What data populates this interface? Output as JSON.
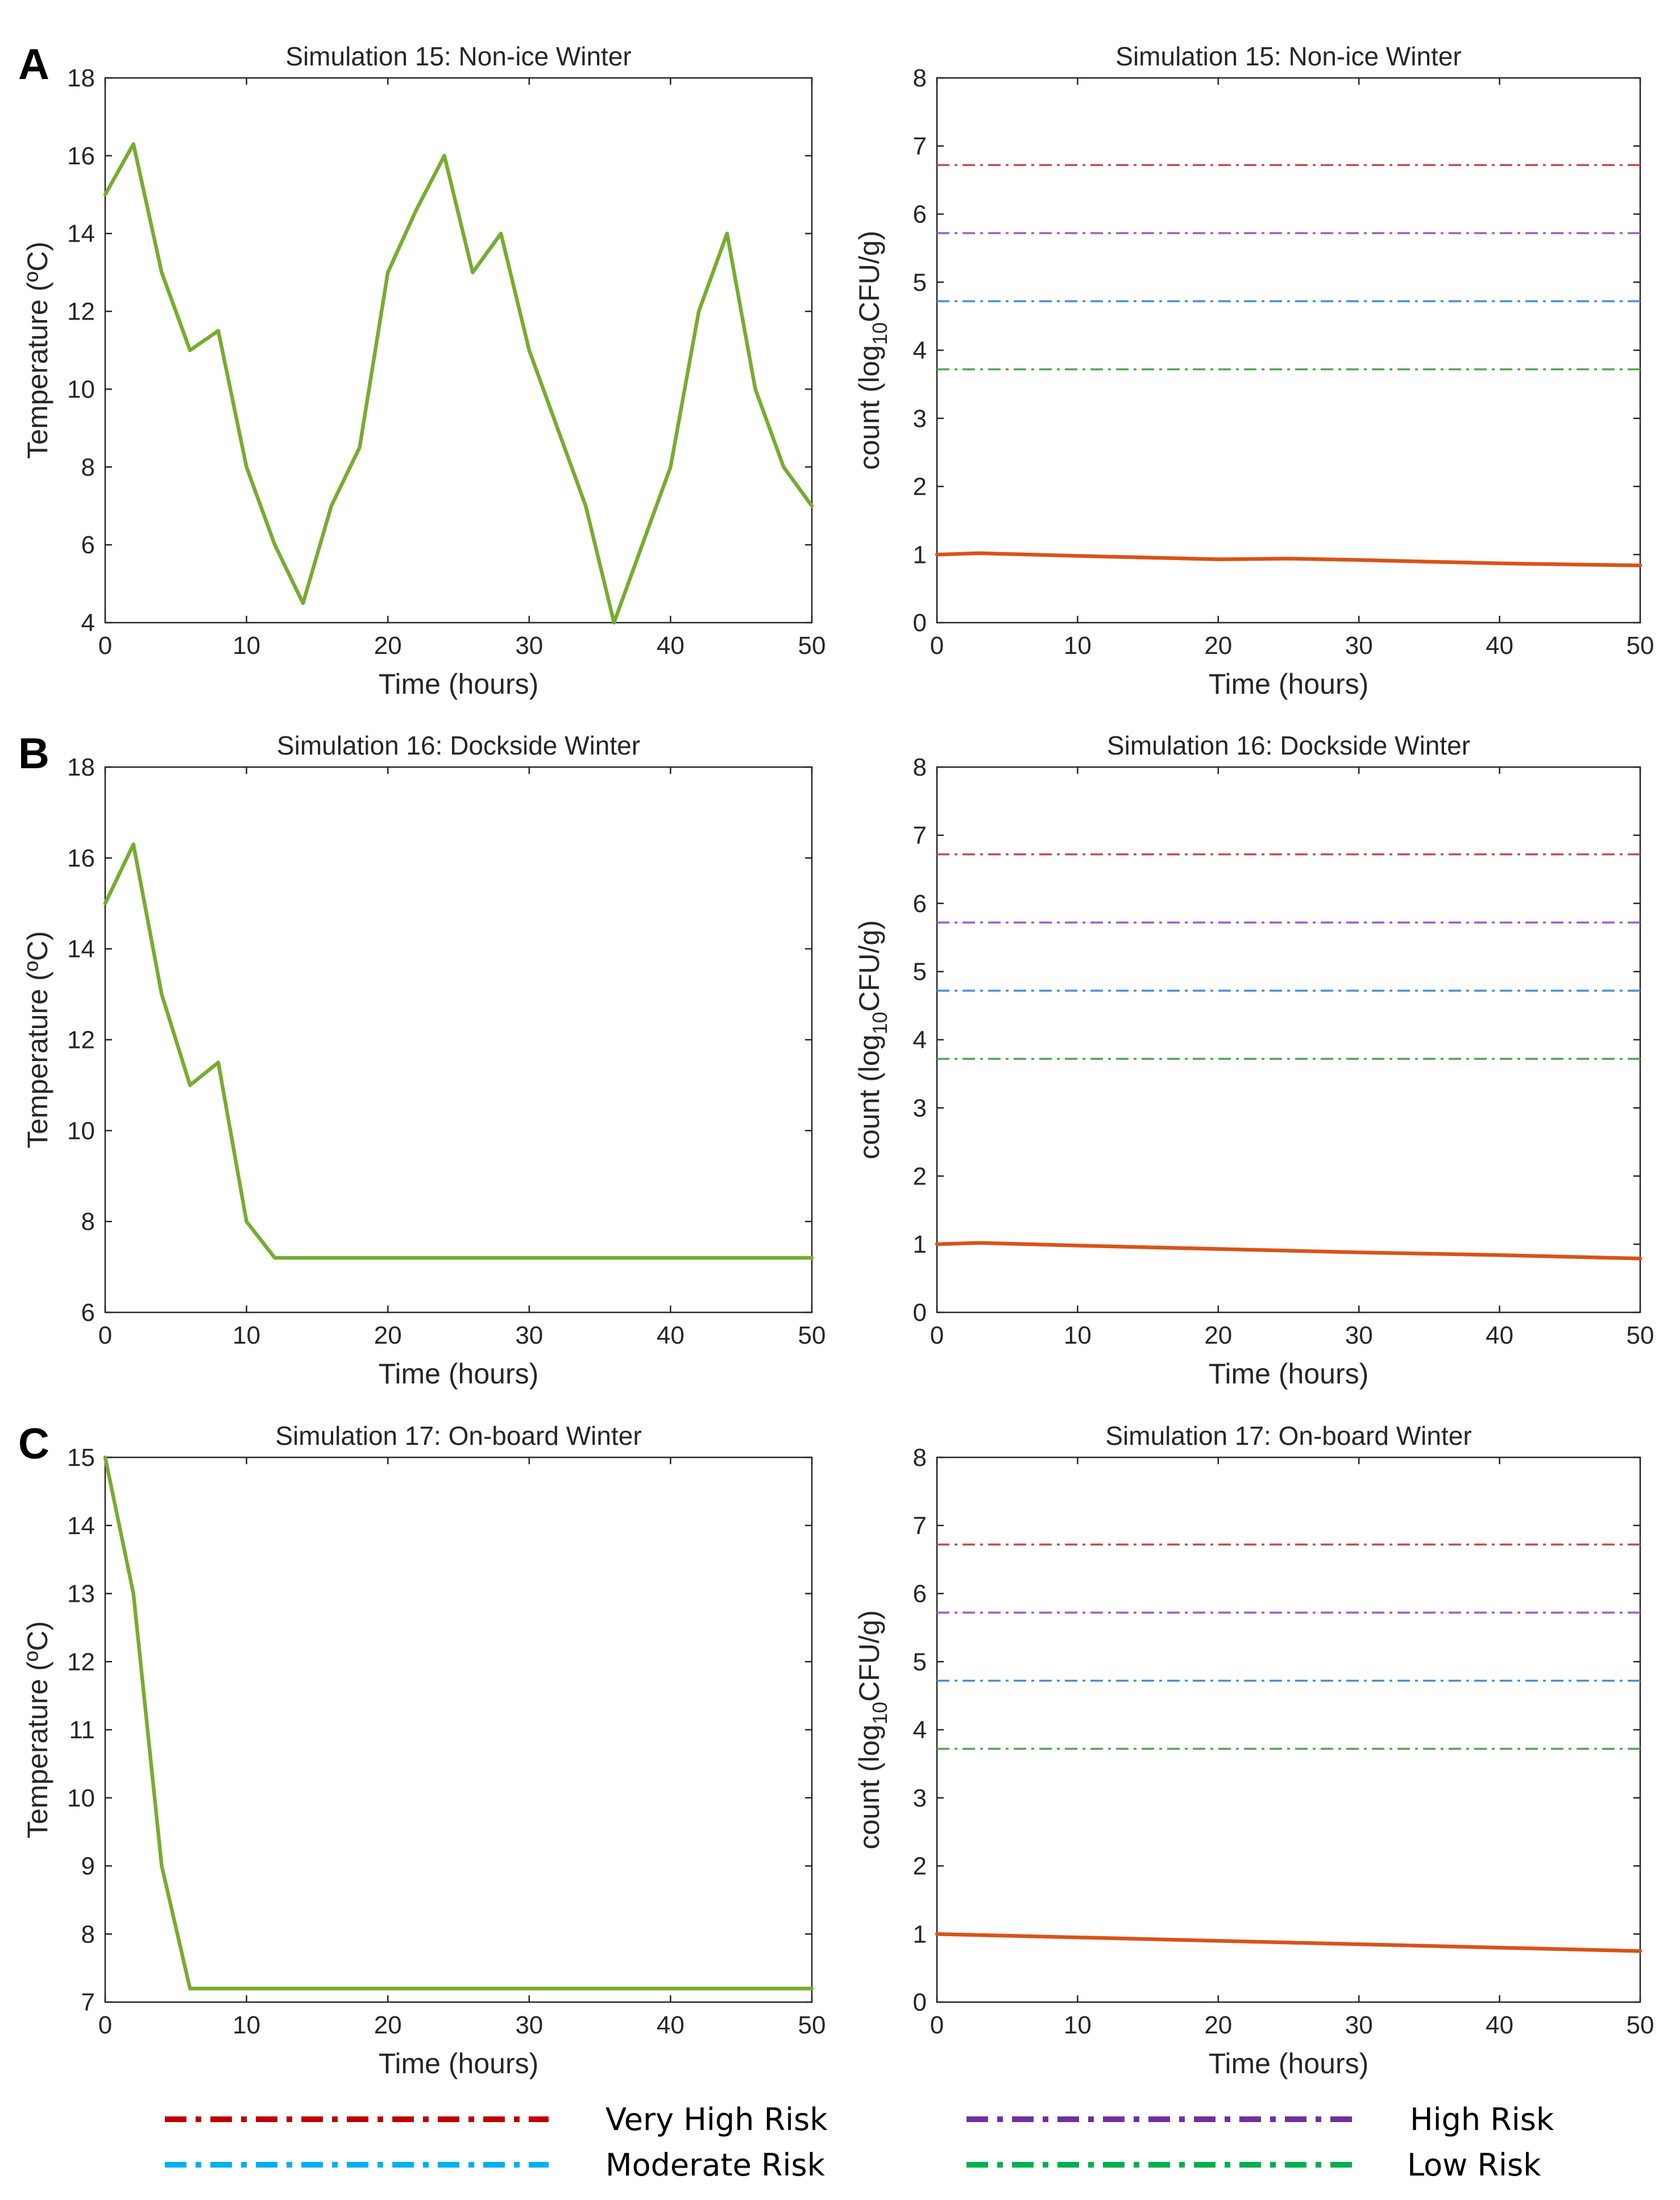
{
  "legend": [
    {
      "label": "Very High Risk",
      "color": "#c00000"
    },
    {
      "label": "High Risk",
      "color": "#7030a0"
    },
    {
      "label": "Moderate Risk",
      "color": "#00b0f0"
    },
    {
      "label": "Low Risk",
      "color": "#00b050"
    }
  ],
  "chart_data": [
    {
      "id": "A-temp",
      "panel_letter": "A",
      "type": "line",
      "title": "Simulation 15: Non-ice Winter",
      "xlabel": "Time (hours)",
      "ylabel": "Temperature (ºC)",
      "xlim": [
        0,
        50
      ],
      "ylim": [
        4,
        18
      ],
      "xticks": [
        0,
        10,
        20,
        30,
        40,
        50
      ],
      "yticks": [
        4,
        6,
        8,
        10,
        12,
        14,
        16,
        18
      ],
      "series": [
        {
          "name": "Temperature",
          "color": "#77ac30",
          "x": [
            0,
            2,
            4,
            6,
            8,
            10,
            12,
            14,
            16,
            18,
            20,
            22,
            24,
            26,
            28,
            30,
            32,
            34,
            36,
            38,
            40,
            42,
            44,
            46,
            48,
            50
          ],
          "y": [
            15,
            16.3,
            13,
            11,
            11.5,
            8,
            6,
            4.5,
            7,
            8.5,
            13,
            14.6,
            16,
            13,
            14,
            11,
            9,
            7,
            4,
            6,
            8,
            12,
            14,
            10,
            8,
            7
          ]
        }
      ]
    },
    {
      "id": "A-count",
      "type": "line",
      "title": "Simulation 15: Non-ice Winter",
      "xlabel": "Time (hours)",
      "ylabel_main": "count (log",
      "ylabel_sub": "10",
      "ylabel_tail": "CFU/g)",
      "xlim": [
        0,
        50
      ],
      "ylim": [
        0,
        8
      ],
      "xticks": [
        0,
        10,
        20,
        30,
        40,
        50
      ],
      "yticks": [
        0,
        1,
        2,
        3,
        4,
        5,
        6,
        7,
        8
      ],
      "thresholds": [
        {
          "name": "Very High Risk",
          "value": 6.72,
          "color": "#c0504d"
        },
        {
          "name": "High Risk",
          "value": 5.72,
          "color": "#a05cc8"
        },
        {
          "name": "Moderate Risk",
          "value": 4.72,
          "color": "#4a90d9"
        },
        {
          "name": "Low Risk",
          "value": 3.72,
          "color": "#4ea84e"
        }
      ],
      "series": [
        {
          "name": "Count",
          "color": "#d95319",
          "x": [
            0,
            3,
            10,
            20,
            25,
            30,
            40,
            50
          ],
          "y": [
            1.0,
            1.02,
            0.98,
            0.93,
            0.94,
            0.92,
            0.87,
            0.84
          ]
        }
      ]
    },
    {
      "id": "B-temp",
      "panel_letter": "B",
      "type": "line",
      "title": "Simulation 16: Dockside Winter",
      "xlabel": "Time (hours)",
      "ylabel": "Temperature (ºC)",
      "xlim": [
        0,
        50
      ],
      "ylim": [
        6,
        18
      ],
      "xticks": [
        0,
        10,
        20,
        30,
        40,
        50
      ],
      "yticks": [
        6,
        8,
        10,
        12,
        14,
        16,
        18
      ],
      "series": [
        {
          "name": "Temperature",
          "color": "#77ac30",
          "x": [
            0,
            2,
            4,
            6,
            8,
            10,
            12,
            50
          ],
          "y": [
            15,
            16.3,
            13,
            11,
            11.5,
            8,
            7.2,
            7.2
          ]
        }
      ]
    },
    {
      "id": "B-count",
      "type": "line",
      "title": "Simulation 16: Dockside Winter",
      "xlabel": "Time (hours)",
      "ylabel_main": "count (log",
      "ylabel_sub": "10",
      "ylabel_tail": "CFU/g)",
      "xlim": [
        0,
        50
      ],
      "ylim": [
        0,
        8
      ],
      "xticks": [
        0,
        10,
        20,
        30,
        40,
        50
      ],
      "yticks": [
        0,
        1,
        2,
        3,
        4,
        5,
        6,
        7,
        8
      ],
      "thresholds": [
        {
          "name": "Very High Risk",
          "value": 6.72,
          "color": "#c0504d"
        },
        {
          "name": "High Risk",
          "value": 5.72,
          "color": "#a05cc8"
        },
        {
          "name": "Moderate Risk",
          "value": 4.72,
          "color": "#4a90d9"
        },
        {
          "name": "Low Risk",
          "value": 3.72,
          "color": "#4ea84e"
        }
      ],
      "series": [
        {
          "name": "Count",
          "color": "#d95319",
          "x": [
            0,
            3,
            10,
            20,
            30,
            40,
            50
          ],
          "y": [
            1.0,
            1.02,
            0.98,
            0.93,
            0.88,
            0.84,
            0.79
          ]
        }
      ]
    },
    {
      "id": "C-temp",
      "panel_letter": "C",
      "type": "line",
      "title": "Simulation 17: On-board Winter",
      "xlabel": "Time (hours)",
      "ylabel": "Temperature (ºC)",
      "xlim": [
        0,
        50
      ],
      "ylim": [
        7,
        15
      ],
      "xticks": [
        0,
        10,
        20,
        30,
        40,
        50
      ],
      "yticks": [
        7,
        8,
        9,
        10,
        11,
        12,
        13,
        14,
        15
      ],
      "series": [
        {
          "name": "Temperature",
          "color": "#77ac30",
          "x": [
            0,
            2,
            4,
            6,
            50
          ],
          "y": [
            15,
            13,
            9,
            7.2,
            7.2
          ]
        }
      ]
    },
    {
      "id": "C-count",
      "type": "line",
      "title": "Simulation 17: On-board Winter",
      "xlabel": "Time (hours)",
      "ylabel_main": "count (log",
      "ylabel_sub": "10",
      "ylabel_tail": "CFU/g)",
      "xlim": [
        0,
        50
      ],
      "ylim": [
        0,
        8
      ],
      "xticks": [
        0,
        10,
        20,
        30,
        40,
        50
      ],
      "yticks": [
        0,
        1,
        2,
        3,
        4,
        5,
        6,
        7,
        8
      ],
      "thresholds": [
        {
          "name": "Very High Risk",
          "value": 6.72,
          "color": "#c0504d"
        },
        {
          "name": "High Risk",
          "value": 5.72,
          "color": "#a05cc8"
        },
        {
          "name": "Moderate Risk",
          "value": 4.72,
          "color": "#4a90d9"
        },
        {
          "name": "Low Risk",
          "value": 3.72,
          "color": "#4ea84e"
        }
      ],
      "series": [
        {
          "name": "Count",
          "color": "#d95319",
          "x": [
            0,
            10,
            20,
            30,
            40,
            50
          ],
          "y": [
            1.0,
            0.95,
            0.9,
            0.85,
            0.8,
            0.75
          ]
        }
      ]
    }
  ]
}
